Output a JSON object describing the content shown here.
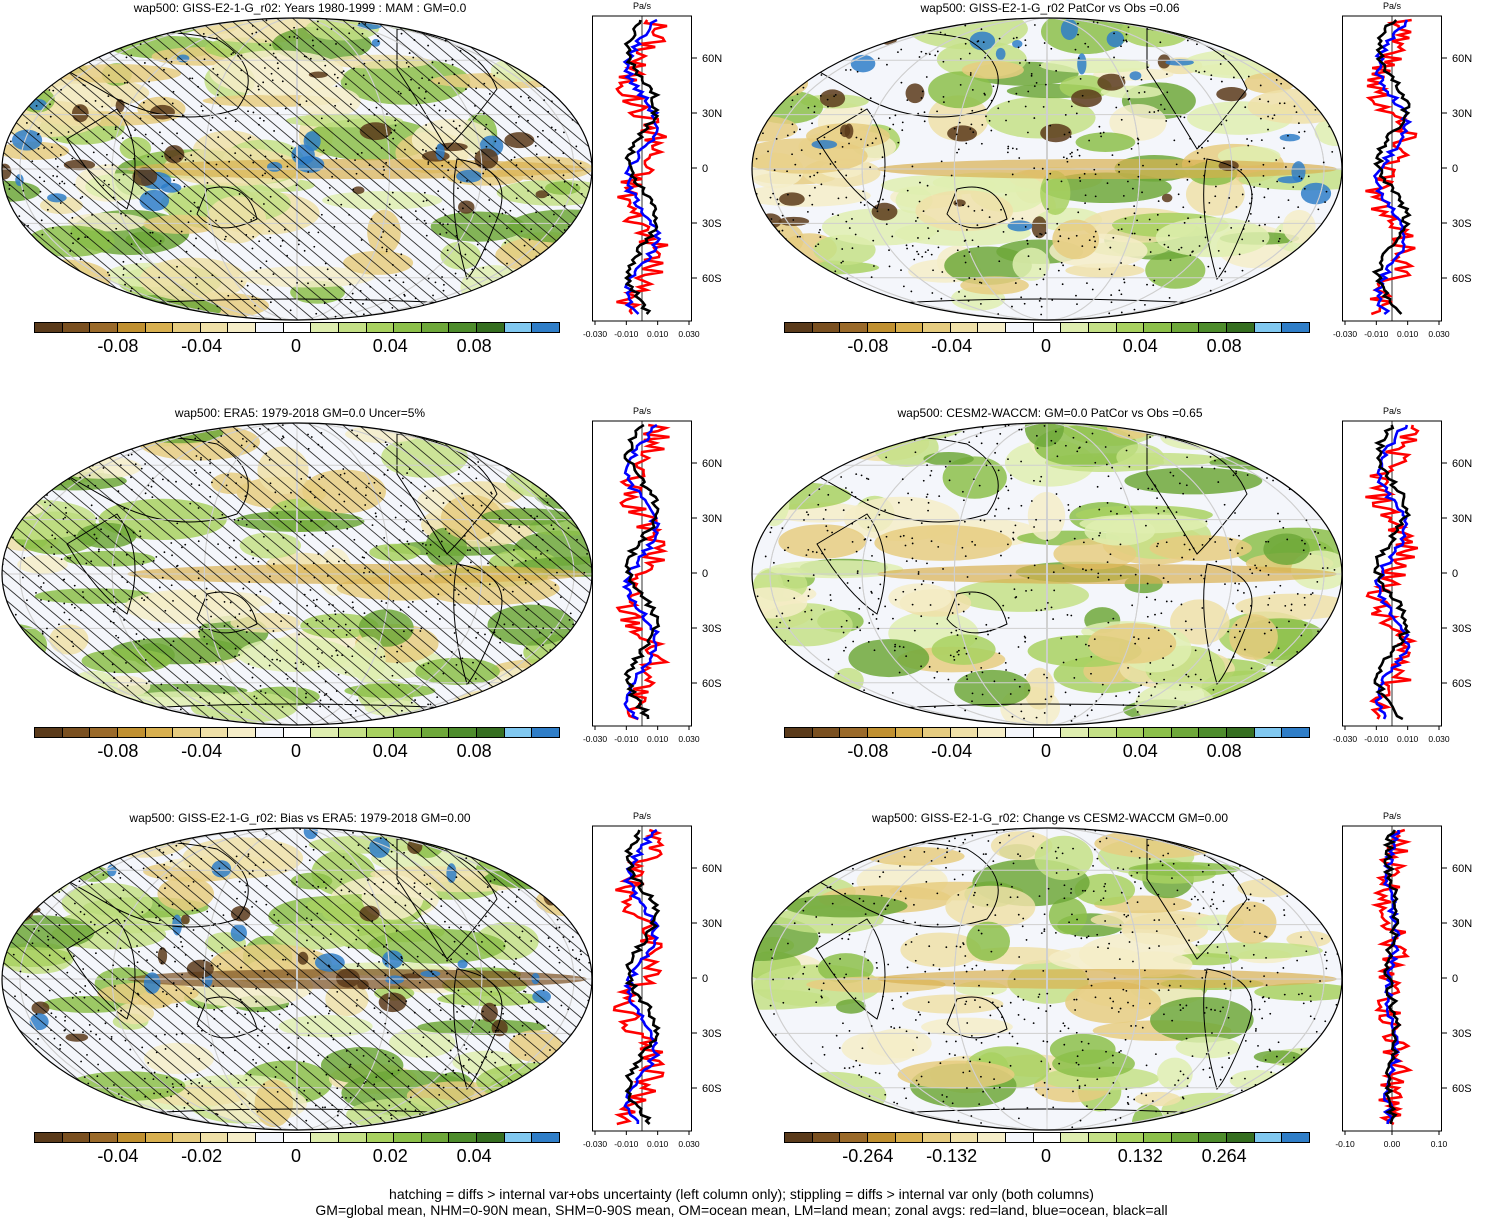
{
  "panels": [
    {
      "id": "p1",
      "title": "wap500: GISS-E2-1-G_r02: Years 1980-1999 : MAM : GM=0.0",
      "cb_labels": [
        "-0.08",
        "-0.04",
        "0",
        "0.04",
        "0.08"
      ],
      "zonal_ticks": [
        "-0.030",
        "-0.010",
        "0.010",
        "0.030"
      ],
      "hatching": true
    },
    {
      "id": "p2",
      "title": "wap500: GISS-E2-1-G_r02 PatCor vs Obs =0.06",
      "cb_labels": [
        "-0.08",
        "-0.04",
        "0",
        "0.04",
        "0.08"
      ],
      "zonal_ticks": [
        "-0.030",
        "-0.010",
        "0.010",
        "0.030"
      ],
      "hatching": false
    },
    {
      "id": "p3",
      "title": "wap500: ERA5: 1979-2018 GM=0.0 Uncer=5%",
      "cb_labels": [
        "-0.08",
        "-0.04",
        "0",
        "0.04",
        "0.08"
      ],
      "zonal_ticks": [
        "-0.030",
        "-0.010",
        "0.010",
        "0.030"
      ],
      "hatching": true
    },
    {
      "id": "p4",
      "title": "wap500: CESM2-WACCM: GM=0.0 PatCor vs Obs =0.65",
      "cb_labels": [
        "-0.08",
        "-0.04",
        "0",
        "0.04",
        "0.08"
      ],
      "zonal_ticks": [
        "-0.030",
        "-0.010",
        "0.010",
        "0.030"
      ],
      "hatching": false
    },
    {
      "id": "p5",
      "title": "wap500: GISS-E2-1-G_r02: Bias vs ERA5: 1979-2018 GM=0.00",
      "cb_labels": [
        "-0.04",
        "-0.02",
        "0",
        "0.02",
        "0.04"
      ],
      "zonal_ticks": [
        "-0.030",
        "-0.010",
        "0.010",
        "0.030"
      ],
      "hatching": true
    },
    {
      "id": "p6",
      "title": "wap500: GISS-E2-1-G_r02: Change vs CESM2-WACCM GM=0.00",
      "cb_labels": [
        "-0.264",
        "-0.132",
        "0",
        "0.132",
        "0.264"
      ],
      "zonal_ticks": [
        "-0.10",
        "0.00",
        "0.10"
      ],
      "hatching": false
    }
  ],
  "zonal_unit": "Pa/s",
  "lat_labels": [
    "60N",
    "30N",
    "0",
    "30S",
    "60S"
  ],
  "colorbar_colors": [
    "#5a3a1a",
    "#7a5020",
    "#9a6a2a",
    "#c09030",
    "#d8b050",
    "#e6cc80",
    "#efe0a8",
    "#f5edc8",
    "#f4f6fb",
    "#ffffff",
    "#dfeeb0",
    "#c4e086",
    "#a8d160",
    "#8cc04a",
    "#6ea83a",
    "#4d8c2c",
    "#356e20",
    "#80c8f0",
    "#2f7ec8"
  ],
  "zonal_colors": {
    "land": "#ff0000",
    "ocean": "#0000ff",
    "all": "#000000"
  },
  "footer": {
    "line1": "hatching = diffs > internal var+obs uncertainty (left column only); stippling = diffs > internal var only (both columns)",
    "line2": "GM=global mean, NHM=0-90N mean, SHM=0-90S mean, OM=ocean mean, LM=land mean; zonal avgs: red=land, blue=ocean, black=all"
  }
}
